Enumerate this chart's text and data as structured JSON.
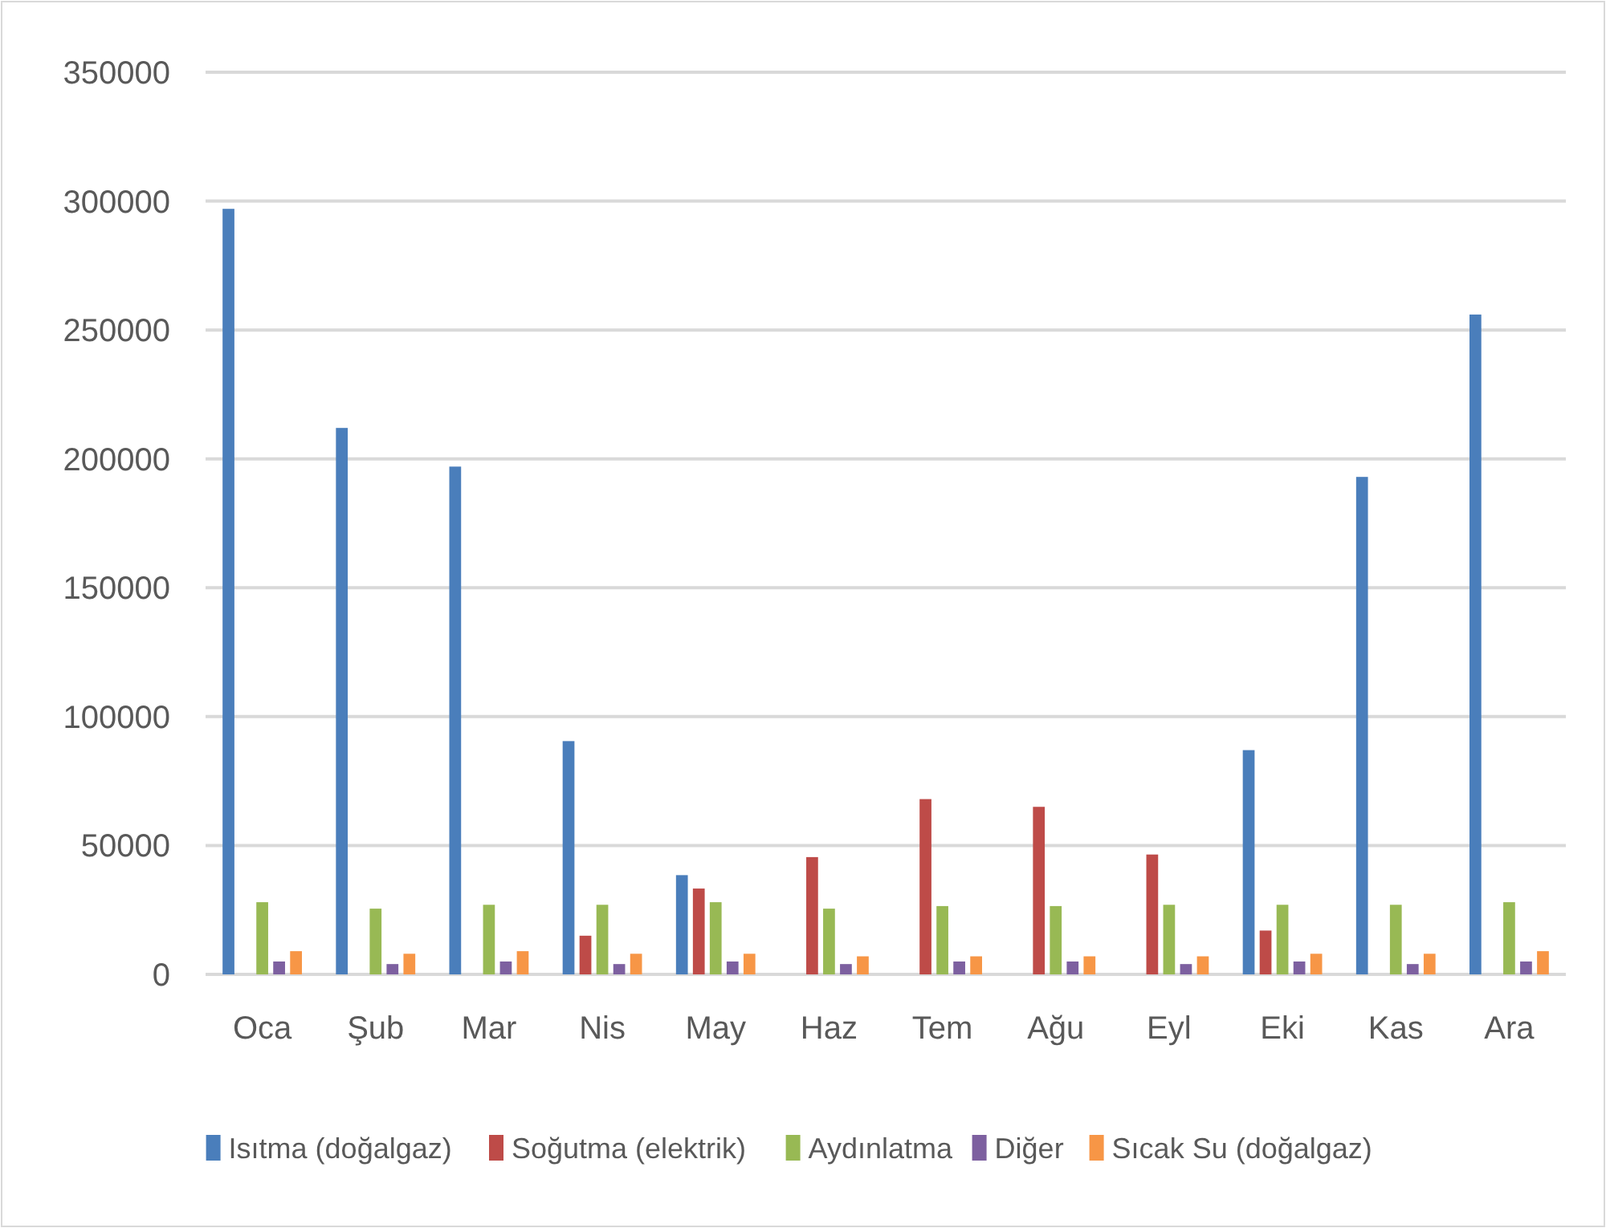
{
  "chart_data": {
    "type": "bar",
    "categories": [
      "Oca",
      "Şub",
      "Mar",
      "Nis",
      "May",
      "Haz",
      "Tem",
      "Ağu",
      "Eyl",
      "Eki",
      "Kas",
      "Ara"
    ],
    "series": [
      {
        "name": "Isıtma (doğalgaz)",
        "color": "#4a7ebb",
        "values": [
          297000,
          212000,
          197000,
          90500,
          38500,
          0,
          0,
          0,
          0,
          87000,
          193000,
          256000
        ]
      },
      {
        "name": "Soğutma (elektrik)",
        "color": "#be4b48",
        "values": [
          0,
          0,
          0,
          15000,
          33300,
          45500,
          68000,
          65000,
          46500,
          17000,
          0,
          0
        ]
      },
      {
        "name": "Aydınlatma",
        "color": "#98b954",
        "values": [
          28000,
          25500,
          27000,
          27000,
          28000,
          25500,
          26500,
          26500,
          27000,
          27000,
          27000,
          28000
        ]
      },
      {
        "name": "Diğer",
        "color": "#7d60a0",
        "values": [
          5000,
          4000,
          5000,
          4000,
          5000,
          4000,
          5000,
          5000,
          4000,
          5000,
          4000,
          5000
        ]
      },
      {
        "name": "Sıcak Su (doğalgaz)",
        "color": "#f79646",
        "values": [
          9000,
          8000,
          9000,
          8000,
          8000,
          7000,
          7000,
          7000,
          7000,
          8000,
          8000,
          9000
        ]
      }
    ],
    "ylim": [
      0,
      350000
    ],
    "yticks": [
      0,
      50000,
      100000,
      150000,
      200000,
      250000,
      300000,
      350000
    ],
    "grid": "y",
    "legend": "bottom"
  }
}
